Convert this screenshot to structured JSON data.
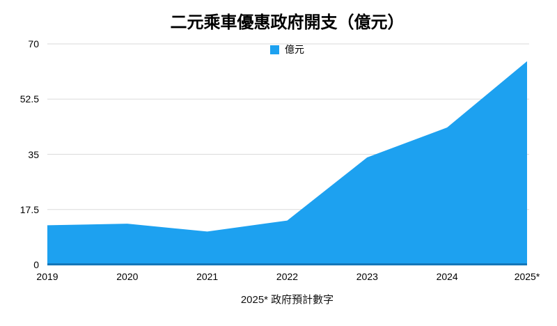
{
  "title": "二元乘車優惠政府開支（億元）",
  "legend": {
    "label": "億元"
  },
  "footnote": "2025* 政府預計數字",
  "colors": {
    "area": "#1DA1F0",
    "baseline": "#1476B8",
    "gridline": "#DADADA",
    "text": "#000000"
  },
  "chart_data": {
    "type": "area",
    "title": "二元乘車優惠政府開支（億元）",
    "categories": [
      "2019",
      "2020",
      "2021",
      "2022",
      "2023",
      "2024",
      "2025*"
    ],
    "series": [
      {
        "name": "億元",
        "values": [
          12.5,
          13,
          10.5,
          14,
          34,
          43.5,
          64.5
        ]
      }
    ],
    "xlabel": "",
    "ylabel": "",
    "ylim": [
      0,
      70
    ],
    "yticks": [
      0,
      17.5,
      35,
      52.5,
      70
    ],
    "grid": true,
    "legend_position": "top-center",
    "annotations": [
      "2025* 政府預計數字"
    ]
  }
}
